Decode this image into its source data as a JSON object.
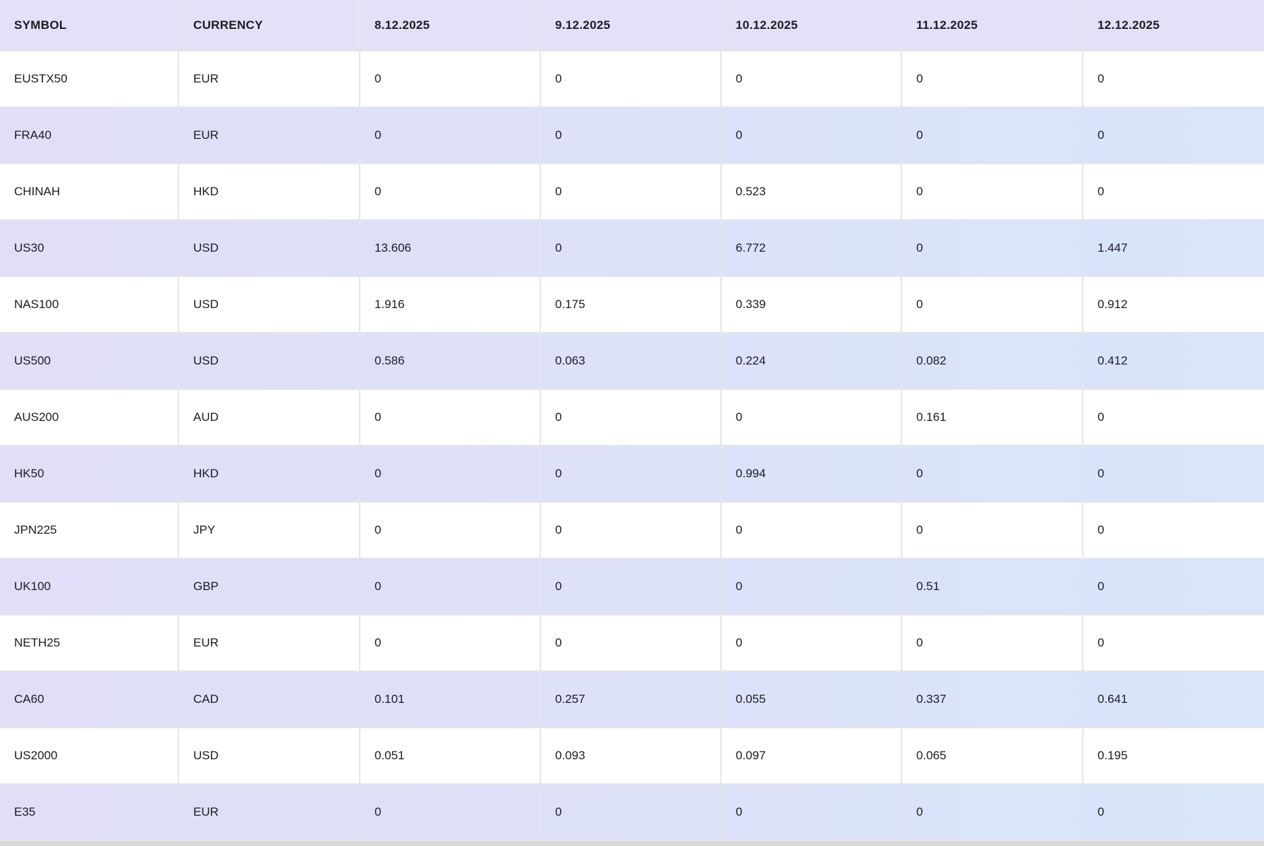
{
  "table": {
    "columns": [
      "SYMBOL",
      "CURRENCY",
      "8.12.2025",
      "9.12.2025",
      "10.12.2025",
      "11.12.2025",
      "12.12.2025"
    ],
    "rows": [
      {
        "symbol": "EUSTX50",
        "currency": "EUR",
        "values": [
          "0",
          "0",
          "0",
          "0",
          "0"
        ]
      },
      {
        "symbol": "FRA40",
        "currency": "EUR",
        "values": [
          "0",
          "0",
          "0",
          "0",
          "0"
        ]
      },
      {
        "symbol": "CHINAH",
        "currency": "HKD",
        "values": [
          "0",
          "0",
          "0.523",
          "0",
          "0"
        ]
      },
      {
        "symbol": "US30",
        "currency": "USD",
        "values": [
          "13.606",
          "0",
          "6.772",
          "0",
          "1.447"
        ]
      },
      {
        "symbol": "NAS100",
        "currency": "USD",
        "values": [
          "1.916",
          "0.175",
          "0.339",
          "0",
          "0.912"
        ]
      },
      {
        "symbol": "US500",
        "currency": "USD",
        "values": [
          "0.586",
          "0.063",
          "0.224",
          "0.082",
          "0.412"
        ]
      },
      {
        "symbol": "AUS200",
        "currency": "AUD",
        "values": [
          "0",
          "0",
          "0",
          "0.161",
          "0"
        ]
      },
      {
        "symbol": "HK50",
        "currency": "HKD",
        "values": [
          "0",
          "0",
          "0.994",
          "0",
          "0"
        ]
      },
      {
        "symbol": "JPN225",
        "currency": "JPY",
        "values": [
          "0",
          "0",
          "0",
          "0",
          "0"
        ]
      },
      {
        "symbol": "UK100",
        "currency": "GBP",
        "values": [
          "0",
          "0",
          "0",
          "0.51",
          "0"
        ]
      },
      {
        "symbol": "NETH25",
        "currency": "EUR",
        "values": [
          "0",
          "0",
          "0",
          "0",
          "0"
        ]
      },
      {
        "symbol": "CA60",
        "currency": "CAD",
        "values": [
          "0.101",
          "0.257",
          "0.055",
          "0.337",
          "0.641"
        ]
      },
      {
        "symbol": "US2000",
        "currency": "USD",
        "values": [
          "0.051",
          "0.093",
          "0.097",
          "0.065",
          "0.195"
        ]
      },
      {
        "symbol": "E35",
        "currency": "EUR",
        "values": [
          "0",
          "0",
          "0",
          "0",
          "0"
        ]
      }
    ]
  },
  "colors": {
    "header_bg": "#e3e0f8",
    "stripe_left": "#e1def8",
    "stripe_right": "#d8e5fa",
    "border": "#e6e5e9",
    "text": "#1b1b20",
    "bottom_strip": "#d9d9d9"
  }
}
